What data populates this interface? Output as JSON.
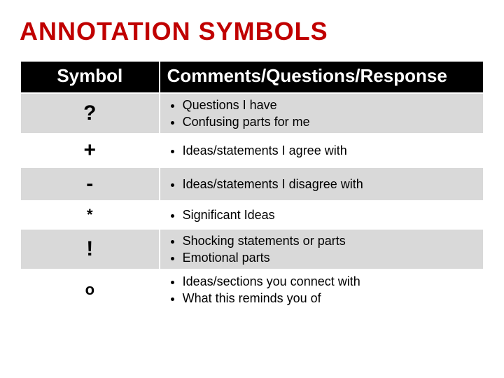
{
  "title": "ANNOTATION SYMBOLS",
  "title_color": "#c00000",
  "columns": {
    "symbol": "Symbol",
    "comments": "Comments/Questions/Response"
  },
  "rows": [
    {
      "shade": true,
      "symbol": "?",
      "size": "big",
      "items": [
        "Questions I have",
        "Confusing parts for me"
      ]
    },
    {
      "shade": false,
      "symbol": "+",
      "size": "big",
      "items": [
        "Ideas/statements I agree with"
      ]
    },
    {
      "shade": true,
      "symbol": "-",
      "size": "big",
      "items": [
        "Ideas/statements I disagree with"
      ]
    },
    {
      "shade": false,
      "symbol": "*",
      "size": "smaller",
      "items": [
        "Significant Ideas"
      ]
    },
    {
      "shade": true,
      "symbol": "!",
      "size": "big",
      "items": [
        "Shocking statements or parts",
        "Emotional parts"
      ]
    },
    {
      "shade": false,
      "symbol": "o",
      "size": "smaller",
      "items": [
        "Ideas/sections you connect with",
        "What this reminds you of"
      ]
    }
  ],
  "colors": {
    "header_bg": "#000000",
    "header_text": "#ffffff",
    "shade_bg": "#d9d9d9",
    "plain_bg": "#ffffff",
    "border": "#ffffff"
  }
}
